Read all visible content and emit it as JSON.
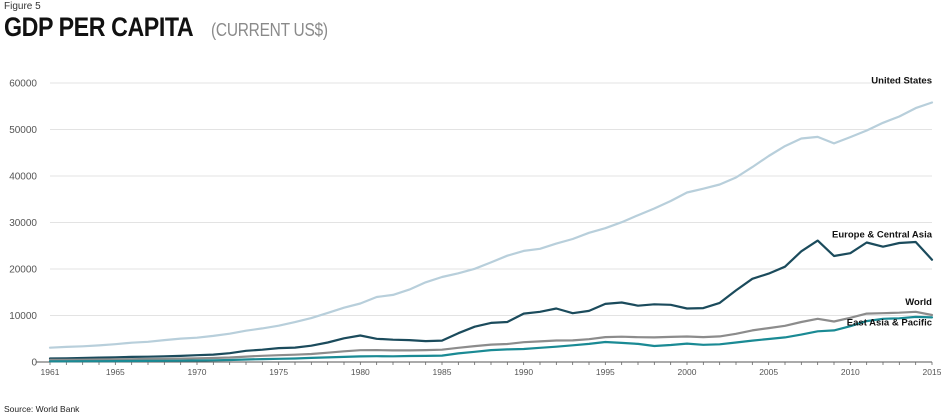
{
  "figure_label": "Figure 5",
  "title": "GDP PER CAPITA",
  "subtitle": "(CURRENT US$)",
  "source": "Source: World Bank",
  "chart_data": {
    "type": "line",
    "title": "GDP PER CAPITA",
    "subtitle": "(CURRENT US$)",
    "xlabel": "",
    "ylabel": "",
    "xlim": [
      1961,
      2015
    ],
    "ylim": [
      0,
      60000
    ],
    "yticks": [
      0,
      10000,
      20000,
      30000,
      40000,
      50000,
      60000
    ],
    "ytick_labels": [
      "0",
      "10000",
      "20000",
      "30000",
      "40000",
      "50000",
      "60000"
    ],
    "xticks": [
      1961,
      1965,
      1970,
      1975,
      1980,
      1985,
      1990,
      1995,
      2000,
      2005,
      2010,
      2015
    ],
    "xtick_labels": [
      "1961",
      "1965",
      "1970",
      "1975",
      "1980",
      "1985",
      "1990",
      "1995",
      "2000",
      "2005",
      "2010",
      "2015"
    ],
    "grid": "horizontal",
    "legend": "inline labels at line ends",
    "x": [
      1961,
      1962,
      1963,
      1964,
      1965,
      1966,
      1967,
      1968,
      1969,
      1970,
      1971,
      1972,
      1973,
      1974,
      1975,
      1976,
      1977,
      1978,
      1979,
      1980,
      1981,
      1982,
      1983,
      1984,
      1985,
      1986,
      1987,
      1988,
      1989,
      1990,
      1991,
      1992,
      1993,
      1994,
      1995,
      1996,
      1997,
      1998,
      1999,
      2000,
      2001,
      2002,
      2003,
      2004,
      2005,
      2006,
      2007,
      2008,
      2009,
      2010,
      2011,
      2012,
      2013,
      2014,
      2015
    ],
    "series": [
      {
        "name": "United States",
        "color": "#b8cfdb",
        "values": [
          3070,
          3240,
          3370,
          3570,
          3830,
          4150,
          4340,
          4700,
          5030,
          5230,
          5610,
          6090,
          6730,
          7230,
          7800,
          8590,
          9450,
          10560,
          11670,
          12570,
          13980,
          14430,
          15560,
          17140,
          18270,
          19070,
          20040,
          21420,
          22860,
          23890,
          24340,
          25470,
          26460,
          27780,
          28780,
          30070,
          31570,
          33000,
          34620,
          36450,
          37270,
          38170,
          39680,
          41920,
          44310,
          46440,
          48060,
          48400,
          47000,
          48370,
          49780,
          51450,
          52790,
          54600,
          55800
        ]
      },
      {
        "name": "Europe & Central Asia",
        "color": "#1b4b5c",
        "values": [
          750,
          800,
          870,
          940,
          1010,
          1090,
          1150,
          1220,
          1320,
          1460,
          1600,
          1900,
          2400,
          2650,
          3000,
          3100,
          3500,
          4200,
          5100,
          5700,
          5000,
          4800,
          4700,
          4500,
          4600,
          6200,
          7600,
          8400,
          8600,
          10400,
          10800,
          11500,
          10500,
          11000,
          12500,
          12800,
          12100,
          12400,
          12300,
          11500,
          11600,
          12700,
          15400,
          17900,
          19000,
          20500,
          23800,
          26100,
          22800,
          23400,
          25700,
          24800,
          25600,
          25800,
          22000
        ]
      },
      {
        "name": "World",
        "color": "#8c8c8c",
        "values": [
          450,
          470,
          500,
          540,
          580,
          610,
          640,
          670,
          730,
          800,
          870,
          970,
          1160,
          1330,
          1460,
          1560,
          1730,
          2010,
          2300,
          2530,
          2560,
          2500,
          2500,
          2560,
          2650,
          3050,
          3420,
          3750,
          3880,
          4250,
          4420,
          4620,
          4640,
          4900,
          5350,
          5440,
          5330,
          5280,
          5390,
          5480,
          5360,
          5500,
          6070,
          6790,
          7280,
          7790,
          8600,
          9300,
          8700,
          9500,
          10400,
          10500,
          10600,
          10800,
          10100
        ]
      },
      {
        "name": "East Asia & Pacific",
        "color": "#1a8a94",
        "values": [
          150,
          160,
          170,
          180,
          200,
          220,
          230,
          250,
          280,
          320,
          360,
          420,
          540,
          630,
          680,
          760,
          880,
          1000,
          1100,
          1200,
          1250,
          1230,
          1280,
          1320,
          1380,
          1850,
          2200,
          2550,
          2700,
          2800,
          3050,
          3300,
          3600,
          3900,
          4300,
          4100,
          3900,
          3450,
          3650,
          3950,
          3700,
          3800,
          4200,
          4600,
          4950,
          5300,
          5900,
          6600,
          6800,
          7700,
          8800,
          9300,
          9400,
          9700,
          9600
        ]
      }
    ]
  }
}
